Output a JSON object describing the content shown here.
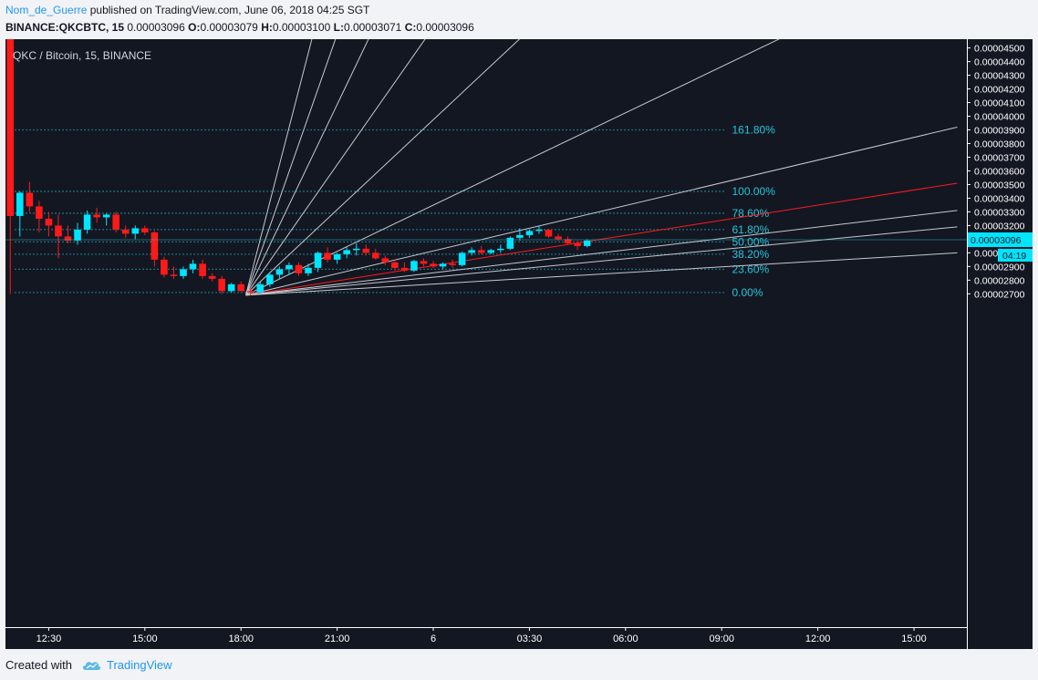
{
  "header": {
    "author": "Nom_de_Guerre",
    "published_text": "published on TradingView.com, June 06, 2018 04:25 SGT",
    "symbol": "BINANCE:QKCBTC, 15",
    "open_label": "O:",
    "open": "0.00003079",
    "high_label": "H:",
    "high": "0.00003100",
    "low_label": "L:",
    "low": "0.00003071",
    "close_label": "C:",
    "close": "0.00003096",
    "last": "0.00003096"
  },
  "footer": {
    "created_with": "Created with",
    "brand": "TradingView",
    "logo_icon": "tradingview-cloud-icon"
  },
  "chart_data": {
    "type": "candlestick",
    "title": "QKC / Bitcoin, 15, BINANCE",
    "ylim": [
      2.6e-06,
      4.564e-05
    ],
    "y_ticks": [
      "0.00002700",
      "0.00002800",
      "0.00002900",
      "0.00003000",
      "0.00003100",
      "0.00003200",
      "0.00003300",
      "0.00003400",
      "0.00003500",
      "0.00003600",
      "0.00003700",
      "0.00003800",
      "0.00003900",
      "0.00004000",
      "0.00004100",
      "0.00004200",
      "0.00004300",
      "0.00004400",
      "0.00004500"
    ],
    "x_ticks": [
      "12:30",
      "15:00",
      "18:00",
      "21:00",
      "6",
      "03:30",
      "06:00",
      "09:00",
      "12:00",
      "15:00"
    ],
    "x_tick_bars": [
      4,
      14,
      24,
      34,
      44,
      54,
      64,
      74,
      84,
      94
    ],
    "x_bar_range": [
      -0.5,
      99.5
    ],
    "current_price": "0.00003096",
    "countdown": "04:19",
    "colors": {
      "background": "#131722",
      "up": "#00e5ff",
      "down": "#ff1a1a",
      "fan": "#c7c9cf",
      "fan_key": "#ff1a1a",
      "fib": "#26c6da",
      "axis_text": "#ffffff"
    },
    "candles": [
      {
        "o": 4.6e-05,
        "h": 4.6e-05,
        "l": 2.7e-05,
        "c": 3.27e-05
      },
      {
        "o": 3.27e-05,
        "h": 3.45e-05,
        "l": 3.12e-05,
        "c": 3.44e-05
      },
      {
        "o": 3.44e-05,
        "h": 3.52e-05,
        "l": 3.3e-05,
        "c": 3.34e-05
      },
      {
        "o": 3.34e-05,
        "h": 3.38e-05,
        "l": 3.15e-05,
        "c": 3.25e-05
      },
      {
        "o": 3.25e-05,
        "h": 3.3e-05,
        "l": 3.12e-05,
        "c": 3.2e-05
      },
      {
        "o": 3.2e-05,
        "h": 3.28e-05,
        "l": 2.96e-05,
        "c": 3.12e-05
      },
      {
        "o": 3.12e-05,
        "h": 3.2e-05,
        "l": 3.07e-05,
        "c": 3.09e-05
      },
      {
        "o": 3.09e-05,
        "h": 3.22e-05,
        "l": 3.06e-05,
        "c": 3.17e-05
      },
      {
        "o": 3.17e-05,
        "h": 3.31e-05,
        "l": 3.14e-05,
        "c": 3.28e-05
      },
      {
        "o": 3.28e-05,
        "h": 3.33e-05,
        "l": 3.22e-05,
        "c": 3.26e-05
      },
      {
        "o": 3.26e-05,
        "h": 3.29e-05,
        "l": 3.2e-05,
        "c": 3.28e-05
      },
      {
        "o": 3.28e-05,
        "h": 3.3e-05,
        "l": 3.15e-05,
        "c": 3.17e-05
      },
      {
        "o": 3.17e-05,
        "h": 3.2e-05,
        "l": 3.11e-05,
        "c": 3.14e-05
      },
      {
        "o": 3.14e-05,
        "h": 3.2e-05,
        "l": 3.1e-05,
        "c": 3.18e-05
      },
      {
        "o": 3.18e-05,
        "h": 3.2e-05,
        "l": 3.13e-05,
        "c": 3.15e-05
      },
      {
        "o": 3.15e-05,
        "h": 3.16e-05,
        "l": 2.9e-05,
        "c": 2.95e-05
      },
      {
        "o": 2.95e-05,
        "h": 2.97e-05,
        "l": 2.82e-05,
        "c": 2.84e-05
      },
      {
        "o": 2.84e-05,
        "h": 2.9e-05,
        "l": 2.81e-05,
        "c": 2.83e-05
      },
      {
        "o": 2.83e-05,
        "h": 2.9e-05,
        "l": 2.81e-05,
        "c": 2.88e-05
      },
      {
        "o": 2.88e-05,
        "h": 2.95e-05,
        "l": 2.85e-05,
        "c": 2.92e-05
      },
      {
        "o": 2.92e-05,
        "h": 2.95e-05,
        "l": 2.81e-05,
        "c": 2.83e-05
      },
      {
        "o": 2.83e-05,
        "h": 2.85e-05,
        "l": 2.79e-05,
        "c": 2.81e-05
      },
      {
        "o": 2.81e-05,
        "h": 2.83e-05,
        "l": 2.7e-05,
        "c": 2.72e-05
      },
      {
        "o": 2.72e-05,
        "h": 2.78e-05,
        "l": 2.71e-05,
        "c": 2.77e-05
      },
      {
        "o": 2.77e-05,
        "h": 2.79e-05,
        "l": 2.72e-05,
        "c": 2.72e-05
      },
      {
        "o": 2.72e-05,
        "h": 2.74e-05,
        "l": 2.69e-05,
        "c": 2.71e-05
      },
      {
        "o": 2.71e-05,
        "h": 2.79e-05,
        "l": 2.7e-05,
        "c": 2.77e-05
      },
      {
        "o": 2.77e-05,
        "h": 2.86e-05,
        "l": 2.75e-05,
        "c": 2.84e-05
      },
      {
        "o": 2.84e-05,
        "h": 2.9e-05,
        "l": 2.81e-05,
        "c": 2.88e-05
      },
      {
        "o": 2.88e-05,
        "h": 2.93e-05,
        "l": 2.84e-05,
        "c": 2.91e-05
      },
      {
        "o": 2.91e-05,
        "h": 2.93e-05,
        "l": 2.83e-05,
        "c": 2.85e-05
      },
      {
        "o": 2.85e-05,
        "h": 2.92e-05,
        "l": 2.83e-05,
        "c": 2.89e-05
      },
      {
        "o": 2.89e-05,
        "h": 3.01e-05,
        "l": 2.86e-05,
        "c": 3e-05
      },
      {
        "o": 3e-05,
        "h": 3.04e-05,
        "l": 2.93e-05,
        "c": 2.95e-05
      },
      {
        "o": 2.95e-05,
        "h": 3e-05,
        "l": 2.92e-05,
        "c": 2.99e-05
      },
      {
        "o": 2.99e-05,
        "h": 3.04e-05,
        "l": 2.96e-05,
        "c": 3.02e-05
      },
      {
        "o": 3.02e-05,
        "h": 3.07e-05,
        "l": 2.98e-05,
        "c": 3.03e-05
      },
      {
        "o": 3.03e-05,
        "h": 3.06e-05,
        "l": 2.98e-05,
        "c": 3e-05
      },
      {
        "o": 3e-05,
        "h": 3.03e-05,
        "l": 2.95e-05,
        "c": 2.96e-05
      },
      {
        "o": 2.96e-05,
        "h": 2.98e-05,
        "l": 2.91e-05,
        "c": 2.93e-05
      },
      {
        "o": 2.93e-05,
        "h": 2.95e-05,
        "l": 2.87e-05,
        "c": 2.89e-05
      },
      {
        "o": 2.89e-05,
        "h": 2.93e-05,
        "l": 2.86e-05,
        "c": 2.87e-05
      },
      {
        "o": 2.87e-05,
        "h": 2.95e-05,
        "l": 2.86e-05,
        "c": 2.94e-05
      },
      {
        "o": 2.94e-05,
        "h": 2.96e-05,
        "l": 2.9e-05,
        "c": 2.92e-05
      },
      {
        "o": 2.92e-05,
        "h": 2.94e-05,
        "l": 2.89e-05,
        "c": 2.9e-05
      },
      {
        "o": 2.9e-05,
        "h": 2.93e-05,
        "l": 2.88e-05,
        "c": 2.92e-05
      },
      {
        "o": 2.92e-05,
        "h": 2.95e-05,
        "l": 2.89e-05,
        "c": 2.91e-05
      },
      {
        "o": 2.91e-05,
        "h": 3.01e-05,
        "l": 2.9e-05,
        "c": 3e-05
      },
      {
        "o": 3e-05,
        "h": 3.04e-05,
        "l": 2.98e-05,
        "c": 3.02e-05
      },
      {
        "o": 3.02e-05,
        "h": 3.05e-05,
        "l": 2.99e-05,
        "c": 3e-05
      },
      {
        "o": 3e-05,
        "h": 3.03e-05,
        "l": 2.99e-05,
        "c": 3.02e-05
      },
      {
        "o": 3.02e-05,
        "h": 3.06e-05,
        "l": 3e-05,
        "c": 3.03e-05
      },
      {
        "o": 3.03e-05,
        "h": 3.12e-05,
        "l": 3.02e-05,
        "c": 3.11e-05
      },
      {
        "o": 3.11e-05,
        "h": 3.18e-05,
        "l": 3.09e-05,
        "c": 3.13e-05
      },
      {
        "o": 3.13e-05,
        "h": 3.17e-05,
        "l": 3.11e-05,
        "c": 3.16e-05
      },
      {
        "o": 3.16e-05,
        "h": 3.2e-05,
        "l": 3.14e-05,
        "c": 3.17e-05
      },
      {
        "o": 3.17e-05,
        "h": 3.17e-05,
        "l": 3.11e-05,
        "c": 3.12e-05
      },
      {
        "o": 3.12e-05,
        "h": 3.14e-05,
        "l": 3.09e-05,
        "c": 3.1e-05
      },
      {
        "o": 3.1e-05,
        "h": 3.12e-05,
        "l": 3.06e-05,
        "c": 3.07e-05
      },
      {
        "o": 3.07e-05,
        "h": 3.09e-05,
        "l": 3.02e-05,
        "c": 3.05e-05
      },
      {
        "o": 3.05e-05,
        "h": 3.1e-05,
        "l": 3.04e-05,
        "c": 3.09e-05
      }
    ],
    "fib_levels": [
      {
        "label": "161.80%",
        "price": 3.9e-05
      },
      {
        "label": "100.00%",
        "price": 3.45e-05
      },
      {
        "label": "78.60%",
        "price": 3.29e-05
      },
      {
        "label": "61.80%",
        "price": 3.17e-05
      },
      {
        "label": "50.00%",
        "price": 3.08e-05
      },
      {
        "label": "38.20%",
        "price": 2.99e-05
      },
      {
        "label": "23.60%",
        "price": 2.88e-05
      },
      {
        "label": "0.00%",
        "price": 2.71e-05
      }
    ],
    "fib_x_bars": [
      0.5,
      74.5
    ],
    "fan": {
      "origin": {
        "bar": 24.5,
        "price": 2.69e-05
      },
      "rays": [
        {
          "bar": 31.5,
          "price": 4.6e-05
        },
        {
          "bar": 34.0,
          "price": 4.6e-05
        },
        {
          "bar": 37.5,
          "price": 4.6e-05
        },
        {
          "bar": 43.5,
          "price": 4.6e-05
        },
        {
          "bar": 53.5,
          "price": 4.6e-05
        },
        {
          "bar": 81.0,
          "price": 4.6e-05
        },
        {
          "bar": 98.5,
          "price": 3.92e-05
        },
        {
          "bar": 98.5,
          "price": 3.51e-05,
          "key": true
        },
        {
          "bar": 98.5,
          "price": 3.31e-05
        },
        {
          "bar": 98.5,
          "price": 3.19e-05
        },
        {
          "bar": 98.5,
          "price": 3e-05
        }
      ]
    }
  }
}
